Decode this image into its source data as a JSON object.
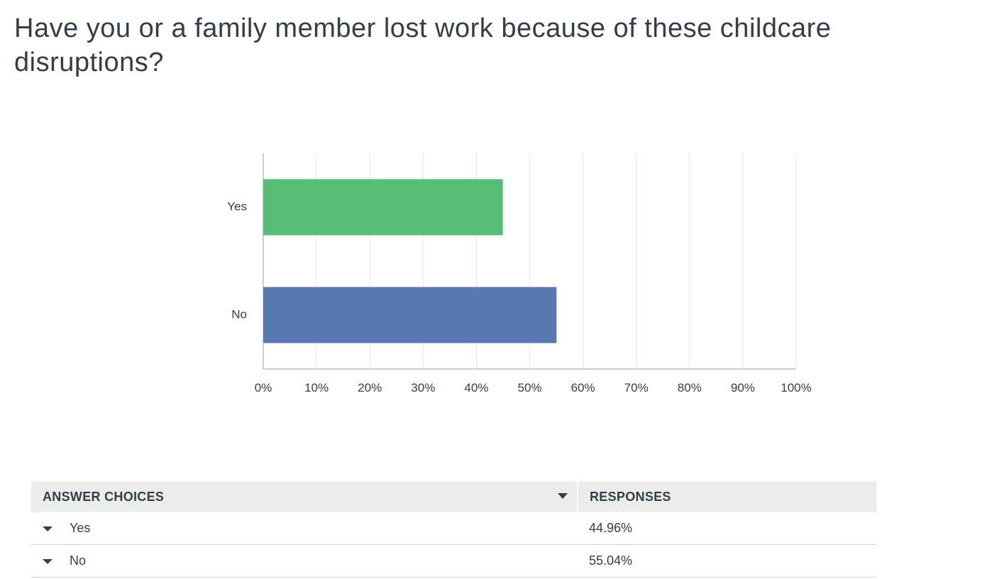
{
  "question": {
    "title": "Have you or a family member lost work because of these childcare disruptions?"
  },
  "chart_data": {
    "type": "bar",
    "orientation": "horizontal",
    "categories": [
      "Yes",
      "No"
    ],
    "values": [
      44.96,
      55.04
    ],
    "colors": [
      "#57bd77",
      "#5879b1"
    ],
    "x_ticks": [
      "0%",
      "10%",
      "20%",
      "30%",
      "40%",
      "50%",
      "60%",
      "70%",
      "80%",
      "90%",
      "100%"
    ],
    "xlim": [
      0,
      100
    ],
    "grid": true,
    "title": "",
    "xlabel": "",
    "ylabel": ""
  },
  "table": {
    "headers": {
      "answers": "ANSWER CHOICES",
      "responses": "RESPONSES"
    },
    "rows": [
      {
        "choice": "Yes",
        "response": "44.96%"
      },
      {
        "choice": "No",
        "response": "55.04%"
      }
    ]
  }
}
